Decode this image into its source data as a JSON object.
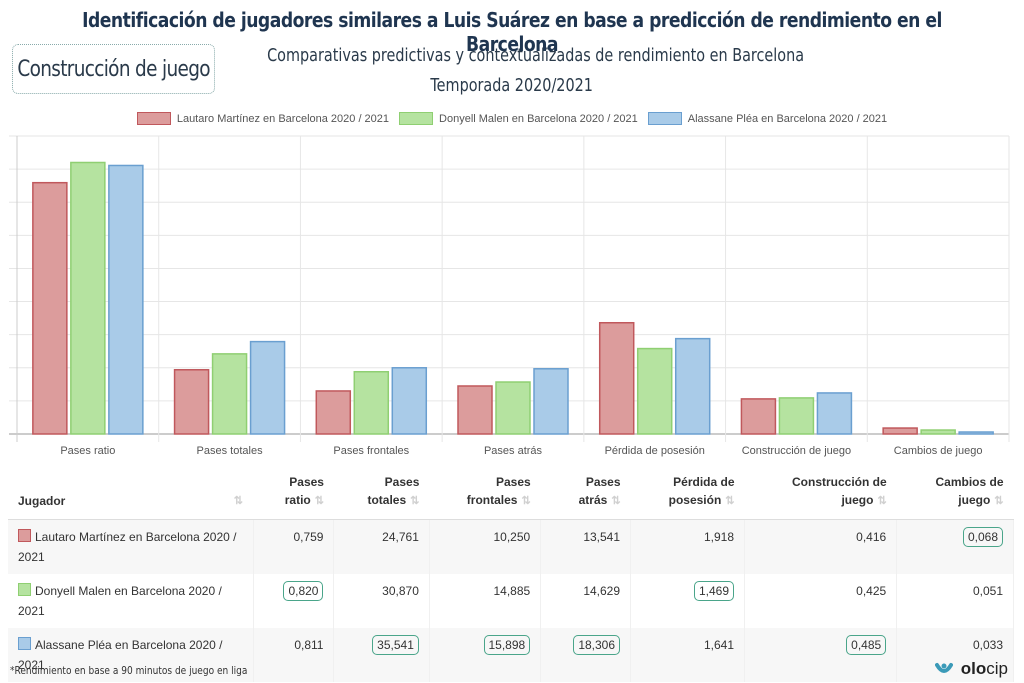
{
  "header": {
    "title": "Identificación de jugadores similares a Luis Suárez en base a predicción de rendimiento en el Barcelona",
    "section_label": "Construcción de juego",
    "subtitle_line1": "Comparativas predictivas y contextualizadas de rendimiento en Barcelona",
    "subtitle_line2": "Temporada 2020/2021"
  },
  "colors": {
    "red_fill": "#dc9c9c",
    "red_border": "#c0585c",
    "green_fill": "#b5e3a0",
    "green_border": "#8fcf72",
    "blue_fill": "#a9cbe8",
    "blue_border": "#6a9fd0",
    "highlight": "#4aa58a",
    "title": "#1f3550"
  },
  "chart_data": {
    "type": "bar",
    "title": "",
    "xlabel": "",
    "ylabel": "",
    "y_tick_labels_visible": false,
    "grid": true,
    "legend_position": "top",
    "ylim": [
      0,
      0.9
    ],
    "categories": [
      "Pases ratio",
      "Pases totales",
      "Pases frontales",
      "Pases atrás",
      "Pérdida de posesión",
      "Construcción de juego",
      "Cambios de juego"
    ],
    "series": [
      {
        "name": "Lautaro Martínez en Barcelona 2020 / 2021",
        "color": "red",
        "values": [
          0.759,
          0.194,
          0.13,
          0.145,
          0.336,
          0.106,
          0.018
        ]
      },
      {
        "name": "Donyell Malen en Barcelona 2020 / 2021",
        "color": "green",
        "values": [
          0.82,
          0.242,
          0.188,
          0.157,
          0.258,
          0.109,
          0.012
        ]
      },
      {
        "name": "Alassane Pléa en Barcelona 2020 / 2021",
        "color": "blue",
        "values": [
          0.811,
          0.279,
          0.2,
          0.197,
          0.288,
          0.124,
          0.006
        ]
      }
    ]
  },
  "table": {
    "columns": [
      "Jugador",
      "Pases ratio",
      "Pases totales",
      "Pases frontales",
      "Pases atrás",
      "Pérdida de posesión",
      "Construcción de juego",
      "Cambios de juego"
    ],
    "column_lines": [
      [
        "Jugador"
      ],
      [
        "Pases",
        "ratio"
      ],
      [
        "Pases",
        "totales"
      ],
      [
        "Pases",
        "frontales"
      ],
      [
        "Pases",
        "atrás"
      ],
      [
        "Pérdida de",
        "posesión"
      ],
      [
        "Construcción de",
        "juego"
      ],
      [
        "Cambios de",
        "juego"
      ]
    ],
    "sort_icon": "sort-icon",
    "rows": [
      {
        "player": "Lautaro Martínez en Barcelona 2020 / 2021",
        "color": "red",
        "values": [
          "0,759",
          "24,761",
          "10,250",
          "13,541",
          "1,918",
          "0,416",
          "0,068"
        ],
        "highlighted": [
          false,
          false,
          false,
          false,
          false,
          false,
          true
        ]
      },
      {
        "player": "Donyell Malen en Barcelona 2020 / 2021",
        "color": "green",
        "values": [
          "0,820",
          "30,870",
          "14,885",
          "14,629",
          "1,469",
          "0,425",
          "0,051"
        ],
        "highlighted": [
          true,
          false,
          false,
          false,
          true,
          false,
          false
        ]
      },
      {
        "player": "Alassane Pléa en Barcelona 2020 / 2021",
        "color": "blue",
        "values": [
          "0,811",
          "35,541",
          "15,898",
          "18,306",
          "1,641",
          "0,485",
          "0,033"
        ],
        "highlighted": [
          false,
          true,
          true,
          true,
          false,
          true,
          false
        ]
      }
    ]
  },
  "footer": {
    "note": "*Rendimiento en base a 90 minutos de juego en liga",
    "brand_bold": "olo",
    "brand_light": "cip"
  }
}
